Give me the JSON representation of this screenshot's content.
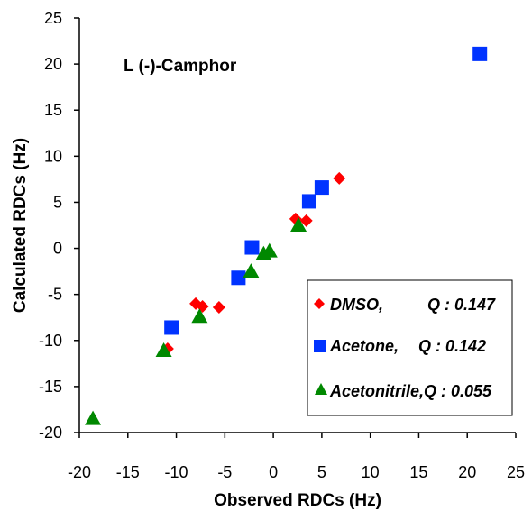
{
  "chart_data": {
    "type": "scatter",
    "title": "",
    "annotation": "L (-)-Camphor",
    "xlabel": "Observed RDCs (Hz)",
    "ylabel": "Calculated RDCs (Hz)",
    "xlim": [
      -20,
      25
    ],
    "ylim": [
      -20,
      25
    ],
    "xticks": [
      "-20",
      "-15",
      "-10",
      "-5",
      "0",
      "5",
      "10",
      "15",
      "20",
      "25"
    ],
    "yticks": [
      "25",
      "20",
      "15",
      "10",
      "5",
      "0",
      "-5",
      "-10",
      "-15",
      "-20"
    ],
    "grid": false,
    "legend_position": "bottom-right",
    "series": [
      {
        "name": "DMSO,",
        "q_label": "Q : 0.147",
        "marker": "diamond",
        "color": "#ff0000",
        "points": [
          [
            6.8,
            7.6
          ],
          [
            3.4,
            3.0
          ],
          [
            2.3,
            3.2
          ],
          [
            -5.6,
            -6.4
          ],
          [
            -7.3,
            -6.3
          ],
          [
            -8.0,
            -6.0
          ],
          [
            -10.9,
            -10.9
          ]
        ]
      },
      {
        "name": "Acetone,",
        "q_label": "Q : 0.142",
        "marker": "square",
        "color": "#0033ff",
        "points": [
          [
            21.3,
            21.1
          ],
          [
            5.0,
            6.6
          ],
          [
            3.7,
            5.1
          ],
          [
            -2.2,
            0.1
          ],
          [
            -3.6,
            -3.2
          ],
          [
            -10.5,
            -8.6
          ]
        ]
      },
      {
        "name": "Acetonitrile,",
        "q_label": "Q : 0.055",
        "marker": "triangle",
        "color": "#008800",
        "points": [
          [
            2.6,
            2.5
          ],
          [
            -0.4,
            -0.3
          ],
          [
            -1.0,
            -0.6
          ],
          [
            -2.3,
            -2.5
          ],
          [
            -7.6,
            -7.4
          ],
          [
            -11.3,
            -11.1
          ],
          [
            -18.6,
            -18.5
          ]
        ]
      }
    ]
  }
}
